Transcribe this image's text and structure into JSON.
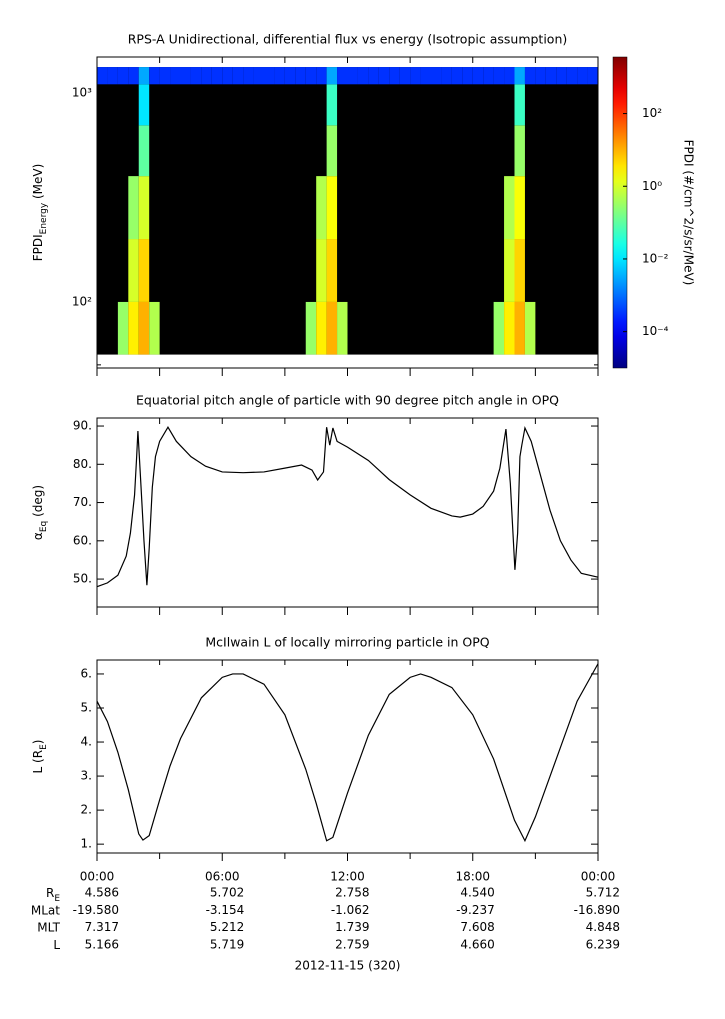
{
  "chart_data": [
    {
      "type": "heatmap",
      "title": "RPS-A Unidirectional, differential flux vs energy (Isotropic assumption)",
      "ylabel": [
        "FPDI",
        "Energy",
        " (MeV)"
      ],
      "zlabel": "FPDI (#/cm^2/s/sr/MeV)",
      "ylog": true,
      "zlog": true,
      "xlim": [
        0,
        24
      ],
      "xticks": [
        0,
        3,
        6,
        9,
        12,
        15,
        18,
        21,
        24
      ],
      "ylim": [
        48.3,
        1486
      ],
      "yticks": [
        {
          "value": 100,
          "label": "10²"
        },
        {
          "value": 1000,
          "label": "10³"
        }
      ],
      "yminor": [
        50,
        60,
        70,
        80,
        90,
        200,
        300,
        400,
        500,
        600,
        700,
        800,
        900
      ],
      "zlim": [
        1e-05,
        3600
      ],
      "zticks": [
        {
          "value": 0.0001,
          "label": "10⁻⁴"
        },
        {
          "value": 0.01,
          "label": "10⁻²"
        },
        {
          "value": 1,
          "label": "10⁰"
        },
        {
          "value": 100,
          "label": "10²"
        }
      ],
      "x_bins": [
        0,
        0.5,
        1,
        1.5,
        2,
        2.5,
        3,
        3.5,
        4,
        4.5,
        5,
        5.5,
        6,
        6.5,
        7,
        7.5,
        8,
        8.5,
        9,
        9.5,
        10,
        10.5,
        11,
        11.5,
        12,
        12.5,
        13,
        13.5,
        14,
        14.5,
        15,
        15.5,
        16,
        16.5,
        17,
        17.5,
        18,
        18.5,
        19,
        19.5,
        20,
        20.5,
        21,
        21.5,
        22,
        22.5,
        23,
        23.5,
        24
      ],
      "y_bins": [
        56,
        100,
        200,
        400,
        700,
        1100,
        1330
      ],
      "z": [
        [
          null,
          null,
          0.3,
          3,
          10,
          0.5,
          null,
          null,
          null,
          null,
          null,
          null,
          null,
          null,
          null,
          null,
          null,
          null,
          null,
          null,
          0.3,
          3,
          10,
          0.5,
          null,
          null,
          null,
          null,
          null,
          null,
          null,
          null,
          null,
          null,
          null,
          null,
          null,
          null,
          0.3,
          3,
          10,
          0.5,
          null,
          null,
          null,
          null,
          null,
          null
        ],
        [
          null,
          null,
          null,
          1,
          5,
          null,
          null,
          null,
          null,
          null,
          null,
          null,
          null,
          null,
          null,
          null,
          null,
          null,
          null,
          null,
          null,
          1,
          5,
          null,
          null,
          null,
          null,
          null,
          null,
          null,
          null,
          null,
          null,
          null,
          null,
          null,
          null,
          null,
          null,
          1,
          5,
          null,
          null,
          null,
          null,
          null,
          null,
          null
        ],
        [
          null,
          null,
          null,
          0.3,
          1,
          null,
          null,
          null,
          null,
          null,
          null,
          null,
          null,
          null,
          null,
          null,
          null,
          null,
          null,
          null,
          null,
          0.5,
          2,
          null,
          null,
          null,
          null,
          null,
          null,
          null,
          null,
          null,
          null,
          null,
          null,
          null,
          null,
          null,
          null,
          0.5,
          2,
          null,
          null,
          null,
          null,
          null,
          null,
          null
        ],
        [
          null,
          null,
          null,
          null,
          0.1,
          null,
          null,
          null,
          null,
          null,
          null,
          null,
          null,
          null,
          null,
          null,
          null,
          null,
          null,
          null,
          null,
          null,
          0.3,
          null,
          null,
          null,
          null,
          null,
          null,
          null,
          null,
          null,
          null,
          null,
          null,
          null,
          null,
          null,
          null,
          null,
          0.3,
          null,
          null,
          null,
          null,
          null,
          null,
          null
        ],
        [
          null,
          null,
          null,
          null,
          0.01,
          null,
          null,
          null,
          null,
          null,
          null,
          null,
          null,
          null,
          null,
          null,
          null,
          null,
          null,
          null,
          null,
          null,
          0.05,
          null,
          null,
          null,
          null,
          null,
          null,
          null,
          null,
          null,
          null,
          null,
          null,
          null,
          null,
          null,
          null,
          null,
          0.05,
          null,
          null,
          null,
          null,
          null,
          null,
          null
        ],
        [
          0.0003,
          0.0003,
          0.0003,
          0.0003,
          0.003,
          0.0003,
          0.0003,
          0.0003,
          0.0003,
          0.0003,
          0.0003,
          0.0003,
          0.0003,
          0.0003,
          0.0003,
          0.0003,
          0.0003,
          0.0003,
          0.0003,
          0.0003,
          0.0003,
          0.0003,
          0.003,
          0.0003,
          0.0003,
          0.0003,
          0.0003,
          0.0003,
          0.0003,
          0.0003,
          0.0003,
          0.0003,
          0.0003,
          0.0003,
          0.0003,
          0.0003,
          0.0003,
          0.0003,
          0.0003,
          0.0003,
          0.003,
          0.0003,
          0.0003,
          0.0003,
          0.0003,
          0.0003,
          0.0003,
          0.0003
        ]
      ]
    },
    {
      "type": "line",
      "title": "Equatorial pitch angle of particle with 90 degree pitch angle in OPQ",
      "ylabel": [
        "α",
        "Eq",
        " (deg)"
      ],
      "color": "#000000",
      "xlim": [
        0,
        24
      ],
      "xticks": [
        0,
        3,
        6,
        9,
        12,
        15,
        18,
        21,
        24
      ],
      "ylim": [
        42.7,
        92.1
      ],
      "yticks": [
        {
          "value": 50,
          "label": "50."
        },
        {
          "value": 60,
          "label": "60."
        },
        {
          "value": 70,
          "label": "70."
        },
        {
          "value": 80,
          "label": "80."
        },
        {
          "value": 90,
          "label": "90."
        }
      ],
      "x": [
        0,
        0.5,
        1,
        1.4,
        1.6,
        1.8,
        1.9,
        1.96,
        2.1,
        2.25,
        2.39,
        2.5,
        2.65,
        2.8,
        3.0,
        3.4,
        3.8,
        4.5,
        5.2,
        6,
        7,
        8,
        9,
        9.8,
        10.3,
        10.57,
        10.85,
        11.0,
        11.15,
        11.3,
        11.5,
        12,
        13,
        14,
        15,
        16,
        17,
        17.4,
        18,
        18.5,
        19,
        19.3,
        19.59,
        19.8,
        20.02,
        20.15,
        20.26,
        20.35,
        20.5,
        20.8,
        21.2,
        21.7,
        22.2,
        22.7,
        23.2,
        24
      ],
      "values": [
        48,
        49,
        51,
        56,
        62,
        72,
        82,
        88.7,
        75,
        60,
        48.4,
        58,
        74,
        82,
        86,
        89.7,
        86,
        82,
        79.5,
        78,
        77.8,
        78,
        79,
        79.8,
        78.5,
        75.9,
        78,
        89.7,
        85,
        89.5,
        86,
        84.5,
        81,
        76,
        72,
        68.5,
        66.5,
        66.2,
        67,
        69,
        73,
        79,
        89.2,
        75,
        52.4,
        62,
        82,
        85,
        89.5,
        86,
        78,
        68,
        60,
        55,
        51.5,
        50.5
      ]
    },
    {
      "type": "line",
      "title": "McIlwain L of locally mirroring particle in OPQ",
      "ylabel": [
        "L (R",
        "E",
        ")"
      ],
      "color": "#000000",
      "xlim": [
        0,
        24
      ],
      "xticks": [
        {
          "value": 0,
          "label": "00:00"
        },
        {
          "value": 6,
          "label": "06:00"
        },
        {
          "value": 12,
          "label": "12:00"
        },
        {
          "value": 18,
          "label": "18:00"
        },
        {
          "value": 24,
          "label": "00:00"
        }
      ],
      "xminor": [
        3,
        9,
        15,
        21
      ],
      "ylim": [
        0.74,
        6.41
      ],
      "yticks": [
        {
          "value": 1,
          "label": "1."
        },
        {
          "value": 2,
          "label": "2."
        },
        {
          "value": 3,
          "label": "3."
        },
        {
          "value": 4,
          "label": "4."
        },
        {
          "value": 5,
          "label": "5."
        },
        {
          "value": 6,
          "label": "6."
        }
      ],
      "x": [
        0,
        0.5,
        1,
        1.5,
        2,
        2.2,
        2.5,
        3,
        3.5,
        4,
        5,
        6,
        6.5,
        7,
        8,
        9,
        10,
        10.5,
        11,
        11.3,
        12,
        13,
        14,
        15,
        15.5,
        16,
        17,
        18,
        19,
        20,
        20.5,
        21,
        22,
        23,
        24
      ],
      "values": [
        5.2,
        4.6,
        3.7,
        2.6,
        1.3,
        1.12,
        1.25,
        2.3,
        3.3,
        4.1,
        5.3,
        5.9,
        6.0,
        6.0,
        5.7,
        4.8,
        3.2,
        2.2,
        1.1,
        1.2,
        2.5,
        4.2,
        5.4,
        5.9,
        6.0,
        5.9,
        5.6,
        4.8,
        3.5,
        1.7,
        1.1,
        1.8,
        3.5,
        5.2,
        6.3
      ]
    }
  ],
  "ephemeris": {
    "rows": [
      {
        "label": [
          "R",
          "E"
        ],
        "values": [
          "4.586",
          "5.702",
          "2.758",
          "4.540",
          "5.712"
        ]
      },
      {
        "label": [
          "MLat"
        ],
        "values": [
          "-19.580",
          "-3.154",
          "-1.062",
          "-9.237",
          "-16.890"
        ]
      },
      {
        "label": [
          "MLT"
        ],
        "values": [
          "7.317",
          "5.212",
          "1.739",
          "7.608",
          "4.848"
        ]
      },
      {
        "label": [
          "L"
        ],
        "values": [
          "5.166",
          "5.719",
          "2.759",
          "4.660",
          "6.239"
        ]
      }
    ],
    "date": "2012-11-15 (320)"
  }
}
